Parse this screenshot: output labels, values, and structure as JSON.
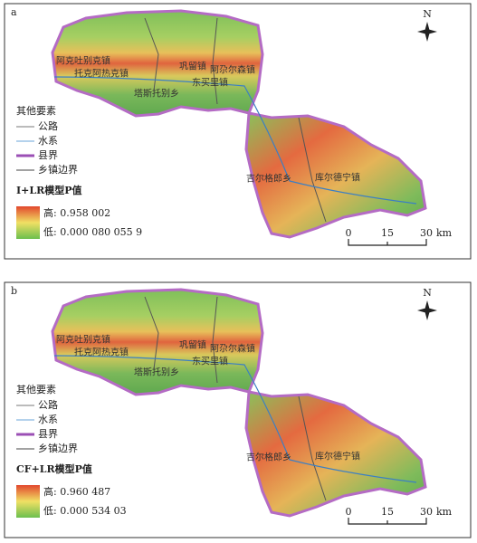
{
  "panels": [
    {
      "label": "a",
      "north": "N",
      "places": [
        "阿克吐别克镇",
        "托克阿热克镇",
        "巩留镇",
        "阿尕尔森镇",
        "东买里镇",
        "塔斯托别乡",
        "吉尔格郎乡",
        "库尔德宁镇"
      ],
      "legend": {
        "title": "其他要素",
        "items": [
          "公路",
          "水系",
          "县界",
          "乡镇边界"
        ]
      },
      "model_title": "I+LR模型P值",
      "high": "高: 0.958 002",
      "low": "低: 0.000 080 055 9",
      "scale": {
        "ticks": [
          "0",
          "15",
          "30"
        ],
        "unit": "km"
      }
    },
    {
      "label": "b",
      "north": "N",
      "places": [
        "阿克吐别克镇",
        "托克阿热克镇",
        "巩留镇",
        "阿尕尔森镇",
        "东买里镇",
        "塔斯托别乡",
        "吉尔格郎乡",
        "库尔德宁镇"
      ],
      "legend": {
        "title": "其他要素",
        "items": [
          "公路",
          "水系",
          "县界",
          "乡镇边界"
        ]
      },
      "model_title": "CF+LR模型P值",
      "high": "高: 0.960 487",
      "low": "低: 0.000 534 03",
      "scale": {
        "ticks": [
          "0",
          "15",
          "30"
        ],
        "unit": "km"
      }
    }
  ]
}
